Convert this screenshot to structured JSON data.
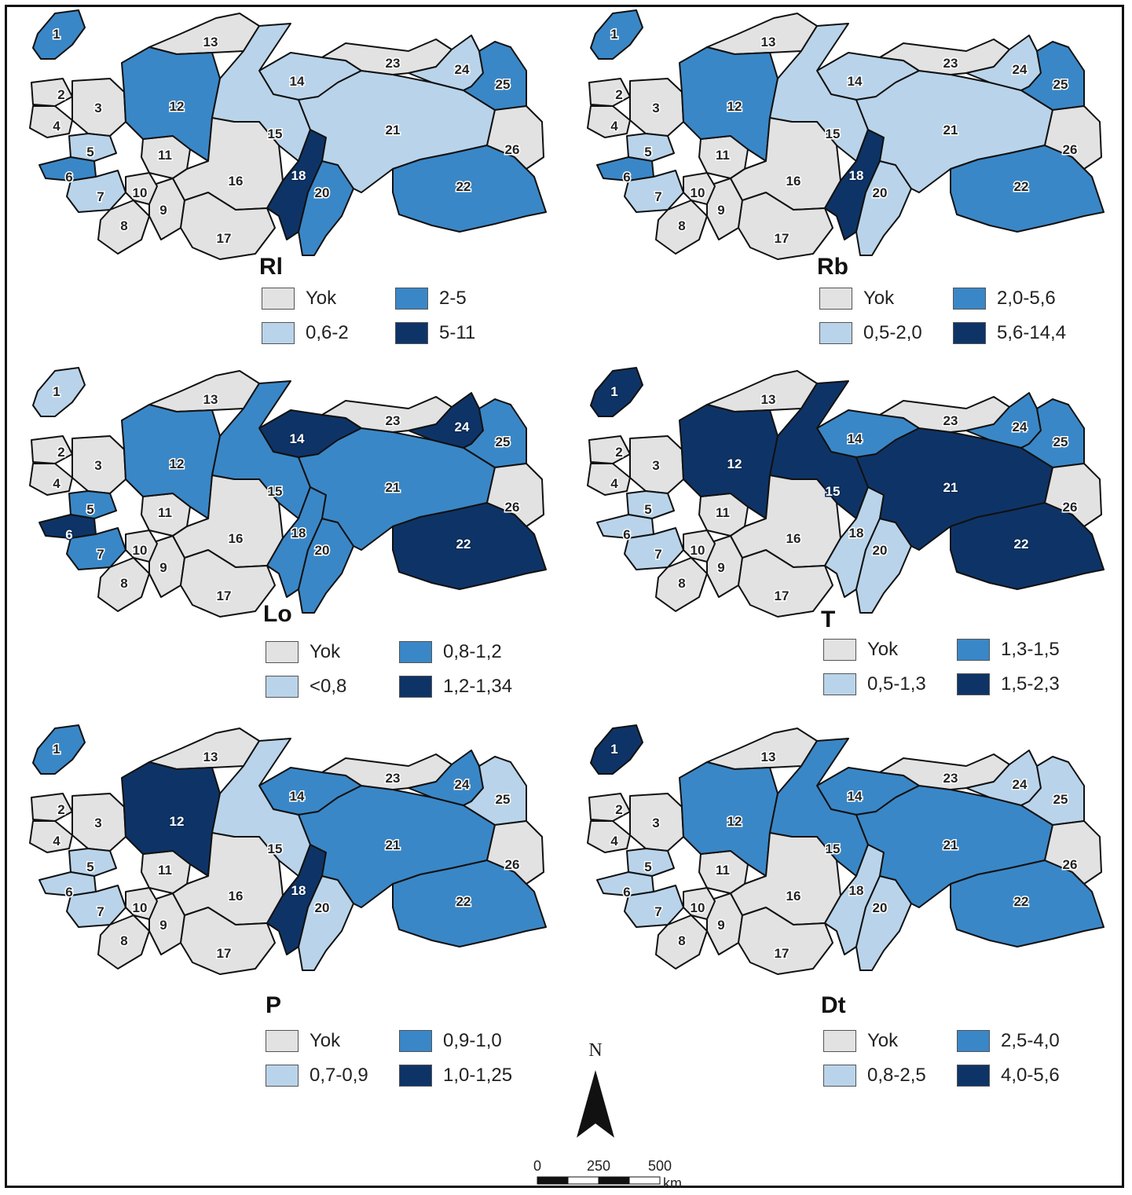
{
  "colors": {
    "yok": "#e2e2e2",
    "c1": "#b9d4ea",
    "c2": "#3a87c7",
    "c3": "#0e3467",
    "border": "#111111",
    "grey_relief": "#c9c9c9"
  },
  "panels": [
    {
      "id": "rl",
      "label": "Rl",
      "legend": [
        "Yok",
        "2-5",
        "0,6-2",
        "5-11"
      ],
      "classes": {
        "1": "c2",
        "2": "yok",
        "3": "yok",
        "4": "yok",
        "5": "c1",
        "6": "c2",
        "7": "c1",
        "8": "yok",
        "9": "yok",
        "10": "yok",
        "11": "yok",
        "12": "c2",
        "13": "yok",
        "14": "c1",
        "15": "c1",
        "16": "yok",
        "17": "yok",
        "18": "c3",
        "20": "c2",
        "21": "c1",
        "22": "c2",
        "23": "yok",
        "24": "c1",
        "25": "c2",
        "26": "yok"
      }
    },
    {
      "id": "rb",
      "label": "Rb",
      "legend": [
        "Yok",
        "2,0-5,6",
        "0,5-2,0",
        "5,6-14,4"
      ],
      "classes": {
        "1": "c2",
        "2": "yok",
        "3": "yok",
        "4": "yok",
        "5": "c1",
        "6": "c2",
        "7": "c1",
        "8": "yok",
        "9": "yok",
        "10": "yok",
        "11": "yok",
        "12": "c2",
        "13": "yok",
        "14": "c1",
        "15": "c1",
        "16": "yok",
        "17": "yok",
        "18": "c3",
        "20": "c1",
        "21": "c1",
        "22": "c2",
        "23": "yok",
        "24": "c1",
        "25": "c2",
        "26": "yok"
      }
    },
    {
      "id": "lo",
      "label": "Lo",
      "legend": [
        "Yok",
        "0,8-1,2",
        "<0,8",
        "1,2-1,34"
      ],
      "classes": {
        "1": "c1",
        "2": "yok",
        "3": "yok",
        "4": "yok",
        "5": "c2",
        "6": "c3",
        "7": "c2",
        "8": "yok",
        "9": "yok",
        "10": "yok",
        "11": "yok",
        "12": "c2",
        "13": "yok",
        "14": "c3",
        "15": "c2",
        "16": "yok",
        "17": "yok",
        "18": "c2",
        "20": "c2",
        "21": "c2",
        "22": "c3",
        "23": "yok",
        "24": "c3",
        "25": "c2",
        "26": "yok"
      }
    },
    {
      "id": "t",
      "label": "T",
      "legend": [
        "Yok",
        "1,3-1,5",
        "0,5-1,3",
        "1,5-2,3"
      ],
      "classes": {
        "1": "c3",
        "2": "yok",
        "3": "yok",
        "4": "yok",
        "5": "c1",
        "6": "c1",
        "7": "c1",
        "8": "yok",
        "9": "yok",
        "10": "yok",
        "11": "yok",
        "12": "c3",
        "13": "yok",
        "14": "c2",
        "15": "c3",
        "16": "yok",
        "17": "yok",
        "18": "c1",
        "20": "c1",
        "21": "c3",
        "22": "c3",
        "23": "yok",
        "24": "c2",
        "25": "c2",
        "26": "yok"
      }
    },
    {
      "id": "p",
      "label": "P",
      "legend": [
        "Yok",
        "0,9-1,0",
        "0,7-0,9",
        "1,0-1,25"
      ],
      "classes": {
        "1": "c2",
        "2": "yok",
        "3": "yok",
        "4": "yok",
        "5": "c1",
        "6": "c1",
        "7": "c1",
        "8": "yok",
        "9": "yok",
        "10": "yok",
        "11": "yok",
        "12": "c3",
        "13": "yok",
        "14": "c2",
        "15": "c1",
        "16": "yok",
        "17": "yok",
        "18": "c3",
        "20": "c1",
        "21": "c2",
        "22": "c2",
        "23": "yok",
        "24": "c2",
        "25": "c1",
        "26": "yok"
      }
    },
    {
      "id": "dt",
      "label": "Dt",
      "legend": [
        "Yok",
        "2,5-4,0",
        "0,8-2,5",
        "4,0-5,6"
      ],
      "classes": {
        "1": "c3",
        "2": "yok",
        "3": "yok",
        "4": "yok",
        "5": "c1",
        "6": "c1",
        "7": "c1",
        "8": "yok",
        "9": "yok",
        "10": "yok",
        "11": "yok",
        "12": "c2",
        "13": "yok",
        "14": "c2",
        "15": "c2",
        "16": "yok",
        "17": "yok",
        "18": "c1",
        "20": "c1",
        "21": "c2",
        "22": "c2",
        "23": "yok",
        "24": "c1",
        "25": "c1",
        "26": "yok"
      }
    }
  ],
  "region_numbers": [
    "1",
    "2",
    "3",
    "4",
    "5",
    "6",
    "7",
    "8",
    "9",
    "10",
    "11",
    "12",
    "13",
    "14",
    "15",
    "16",
    "17",
    "18",
    "20",
    "21",
    "22",
    "23",
    "24",
    "25",
    "26"
  ],
  "north_arrow": "N",
  "scale": {
    "ticks": [
      "0",
      "250",
      "500"
    ],
    "unit": "km"
  }
}
